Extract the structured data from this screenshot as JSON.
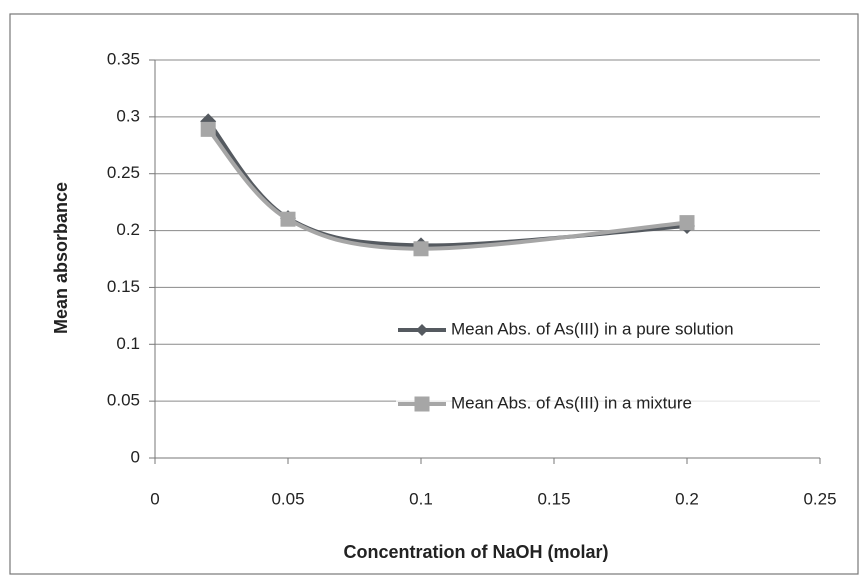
{
  "chart_data": {
    "type": "line",
    "x_label": "Concentration of NaOH (molar)",
    "y_label": "Mean absorbance",
    "x": [
      0.02,
      0.05,
      0.1,
      0.2
    ],
    "series": [
      {
        "name": "Mean Abs. of As(III) in a pure solution",
        "color": "#555a60",
        "marker": "diamond",
        "values": [
          0.296,
          0.211,
          0.187,
          0.204
        ]
      },
      {
        "name": "Mean Abs. of As(III) in a mixture",
        "color": "#a6a6a6",
        "marker": "square",
        "values": [
          0.289,
          0.21,
          0.184,
          0.207
        ]
      }
    ],
    "xlim": [
      0,
      0.25
    ],
    "xticks": [
      0,
      0.05,
      0.1,
      0.15,
      0.2,
      0.25
    ],
    "ylim": [
      0,
      0.35
    ],
    "yticks": [
      0,
      0.05,
      0.1,
      0.15,
      0.2,
      0.25,
      0.3,
      0.35
    ],
    "grid": true,
    "smooth": true
  }
}
